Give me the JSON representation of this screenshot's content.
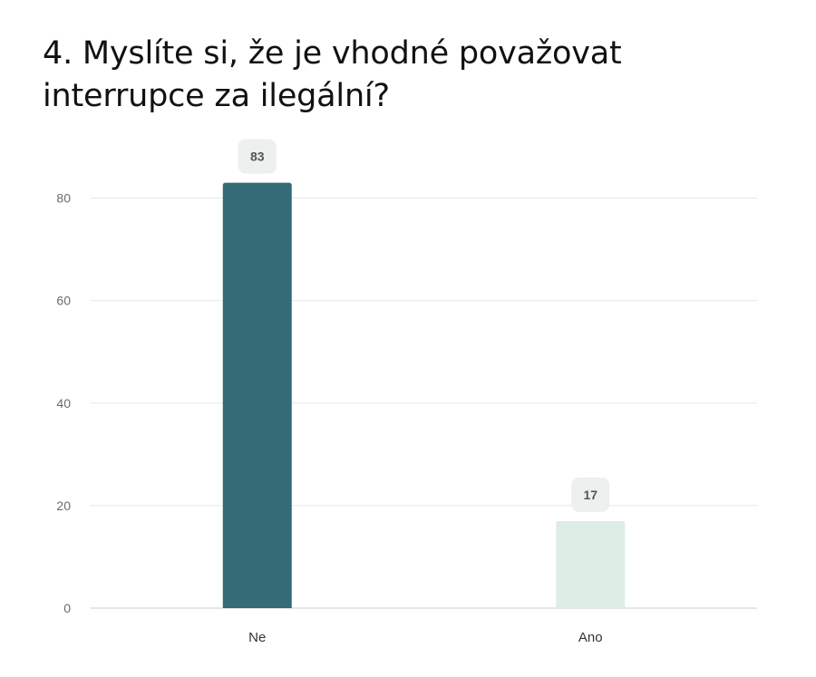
{
  "chart_data": {
    "type": "bar",
    "title": "4. Myslíte si, že je vhodné považovat interrupce za ilegální?",
    "categories": [
      "Ne",
      "Ano"
    ],
    "values": [
      83,
      17
    ],
    "colors": [
      "#336b77",
      "#deeee7"
    ],
    "ylim": [
      0,
      90
    ],
    "yticks": [
      0,
      20,
      40,
      60,
      80
    ],
    "xlabel": "",
    "ylabel": "",
    "grid": true,
    "data_labels": true,
    "legend": "none"
  }
}
